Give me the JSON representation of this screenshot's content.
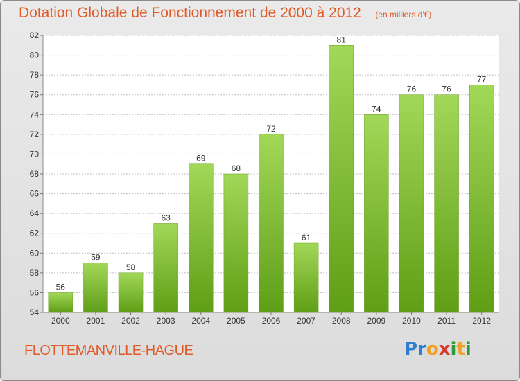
{
  "header": {
    "title": "Dotation Globale de Fonctionnement de 2000 à 2012",
    "subtitle": "(en milliers d'€)"
  },
  "footer": {
    "commune": "FLOTTEMANVILLE-HAGUE",
    "logo_text": "Proxiti",
    "logo_letters": [
      "P",
      "r",
      "o",
      "x",
      "i",
      "t",
      "i"
    ],
    "logo_colors": [
      "#2f7fd0",
      "#2f7fd0",
      "#f0a020",
      "#d83a2a",
      "#2f9a3a",
      "#f0a020",
      "#2f9a3a"
    ]
  },
  "colors": {
    "title": "#e05a28",
    "bar_top": "#a2d858",
    "bar_bottom": "#5f9e16",
    "grid": "#bdbdbd",
    "axis_text": "#333333"
  },
  "chart_data": {
    "type": "bar",
    "title": "Dotation Globale de Fonctionnement de 2000 à 2012",
    "subtitle": "(en milliers d'€)",
    "categories": [
      "2000",
      "2001",
      "2002",
      "2003",
      "2004",
      "2005",
      "2006",
      "2007",
      "2008",
      "2009",
      "2010",
      "2011",
      "2012"
    ],
    "values": [
      56,
      59,
      58,
      63,
      69,
      68,
      72,
      61,
      81,
      74,
      76,
      76,
      77
    ],
    "data_labels": [
      "56",
      "59",
      "58",
      "63",
      "69",
      "68",
      "72",
      "61",
      "81",
      "74",
      "76",
      "76",
      "77"
    ],
    "ylim": [
      54,
      82
    ],
    "yticks": [
      54,
      56,
      58,
      60,
      62,
      64,
      66,
      68,
      70,
      72,
      74,
      76,
      78,
      80,
      82
    ],
    "xlabel": "",
    "ylabel": "",
    "grid": true,
    "legend": "none"
  }
}
